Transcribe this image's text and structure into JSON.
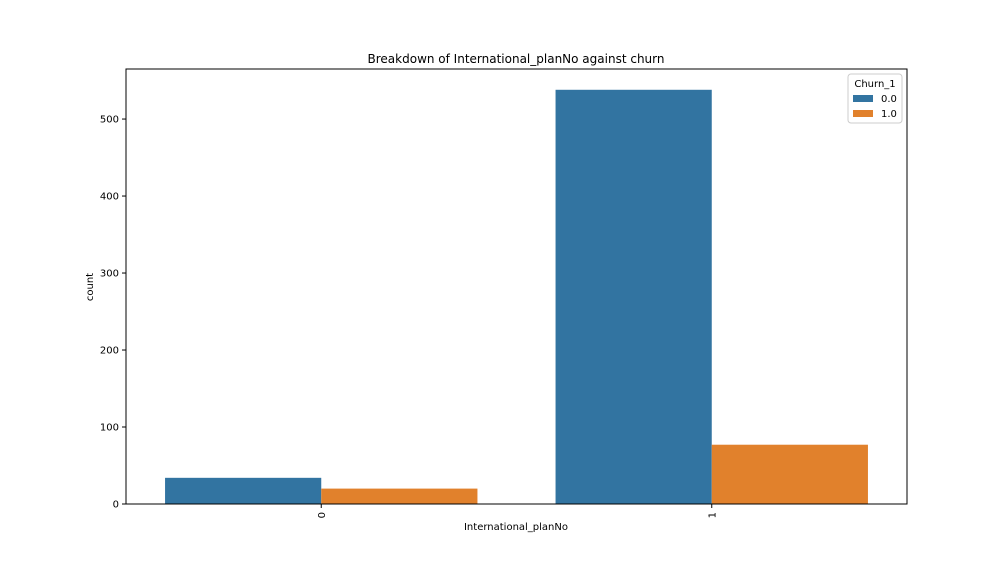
{
  "chart_data": {
    "type": "bar",
    "title": "Breakdown of International_planNo against churn",
    "xlabel": "International_planNo",
    "ylabel": "count",
    "categories": [
      "0",
      "1"
    ],
    "series": [
      {
        "name": "0.0",
        "color": "#3274a1",
        "values": [
          34,
          538
        ]
      },
      {
        "name": "1.0",
        "color": "#e1812c",
        "values": [
          20,
          77
        ]
      }
    ],
    "ylim": [
      0,
      565
    ],
    "yticks": [
      0,
      100,
      200,
      300,
      400,
      500
    ],
    "legend": {
      "title": "Churn_1",
      "placement": "upper-right"
    },
    "grid": false
  }
}
